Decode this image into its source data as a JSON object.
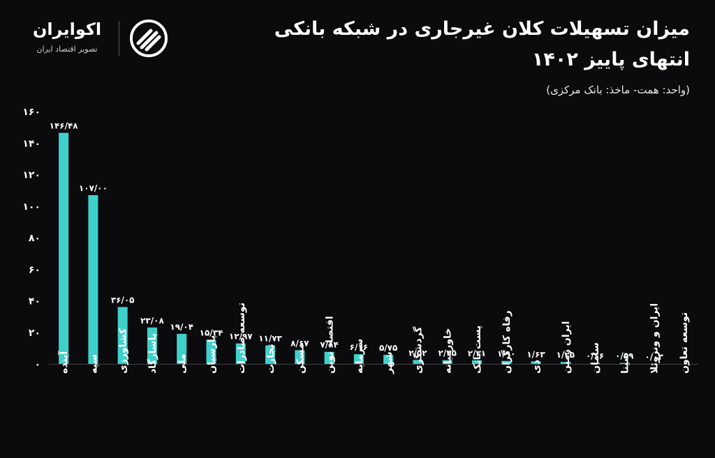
{
  "header": {
    "title_line1": "میزان تسهیلات کلان غیرجاری در شبکه بانکی",
    "title_line2": "انتهای پاییز ۱۴۰۲",
    "subtitle": "(واحد: همت- ماخذ: بانک مرکزی)"
  },
  "brand": {
    "name": "اکوایران",
    "tagline": "تصویر اقتصاد ایران",
    "icon": "ecoiran-logo-icon"
  },
  "colors": {
    "background": "#0b0b0d",
    "bar": "#3fd0cc",
    "text": "#ffffff"
  },
  "chart_data": {
    "type": "bar",
    "title": "میزان تسهیلات کلان غیرجاری در شبکه بانکی انتهای پاییز ۱۴۰۲",
    "xlabel": "",
    "ylabel": "",
    "ylim": [
      0,
      160
    ],
    "yticks": [
      0,
      20,
      40,
      60,
      80,
      100,
      120,
      140,
      160
    ],
    "ytick_labels": [
      "۰",
      "۲۰",
      "۴۰",
      "۶۰",
      "۸۰",
      "۱۰۰",
      "۱۲۰",
      "۱۴۰",
      "۱۶۰"
    ],
    "grid": false,
    "legend": "none",
    "categories": [
      "آینده",
      "سپه",
      "کشاورزی",
      "پاسارگاد",
      "ملی",
      "پارسیان",
      "توسعه صادرات",
      "تجارت",
      "مسکن",
      "اقتصاد نوین",
      "سرمایه",
      "شهر",
      "گردشگری",
      "خاورمیانه",
      "پست بانک",
      "رفاه کارگران",
      "دی",
      "ایران زمین",
      "سامان",
      "سینا",
      "ایران و ونزوئلا",
      "توسعه تعاون"
    ],
    "values": [
      146.48,
      107.0,
      36.05,
      23.08,
      19.04,
      15.34,
      12.97,
      11.73,
      8.67,
      7.64,
      6.16,
      5.75,
      2.52,
      2.35,
      2.31,
      1.9,
      1.63,
      1.25,
      0.66,
      0.59,
      0.03,
      0
    ],
    "value_labels": [
      "۱۴۶/۴۸",
      "۱۰۷/۰۰",
      "۳۶/۰۵",
      "۲۳/۰۸",
      "۱۹/۰۴",
      "۱۵/۳۴",
      "۱۲/۹۷",
      "۱۱/۷۳",
      "۸/۶۷",
      "۷/۶۴",
      "۶/۱۶",
      "۵/۷۵",
      "۲/۵۲",
      "۲/۳۵",
      "۲/۳۱",
      "۱/۹۰",
      "۱/۶۳",
      "۱/۲۵",
      "۰/۶۶",
      "۰/۵۹",
      "۰/۰۳",
      "۰"
    ]
  }
}
